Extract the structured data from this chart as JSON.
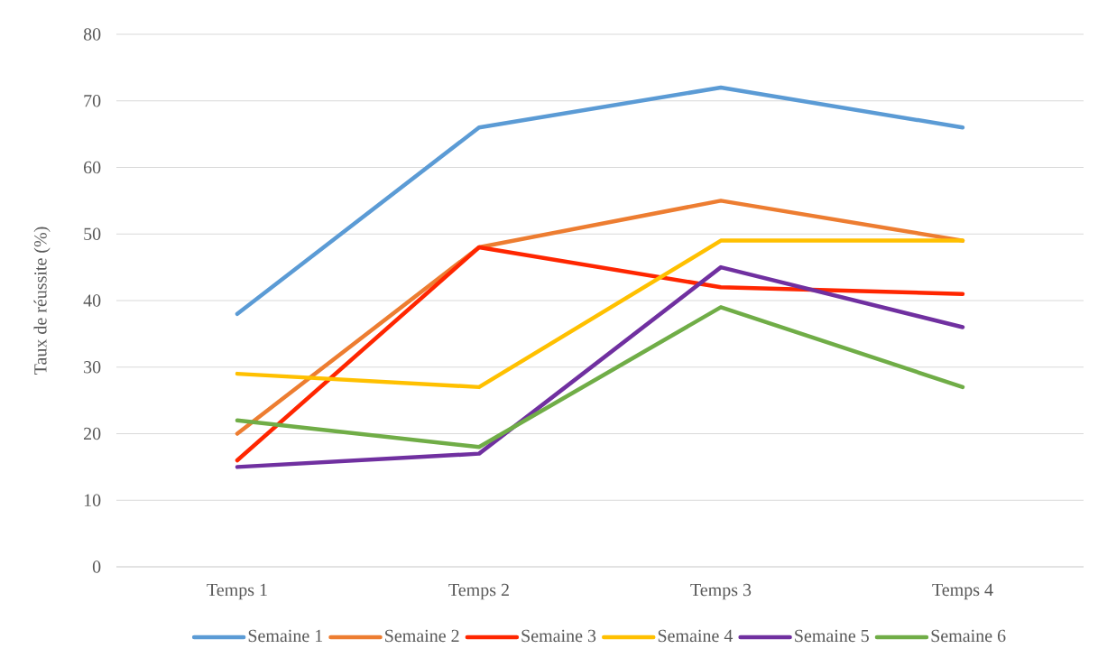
{
  "chart_data": {
    "type": "line",
    "ylabel": "Taux de réussite (%)",
    "categories": [
      "Temps 1",
      "Temps 2",
      "Temps 3",
      "Temps 4"
    ],
    "series": [
      {
        "name": "Semaine 1",
        "color": "#5b9bd5",
        "values": [
          38,
          66,
          72,
          66
        ]
      },
      {
        "name": "Semaine 2",
        "color": "#ed7d31",
        "values": [
          20,
          48,
          55,
          49
        ]
      },
      {
        "name": "Semaine 3",
        "color": "#ff2600",
        "values": [
          16,
          48,
          42,
          41
        ]
      },
      {
        "name": "Semaine 4",
        "color": "#ffc000",
        "values": [
          29,
          27,
          49,
          49
        ]
      },
      {
        "name": "Semaine 5",
        "color": "#7030a0",
        "values": [
          15,
          17,
          45,
          36
        ]
      },
      {
        "name": "Semaine 6",
        "color": "#70ad47",
        "values": [
          22,
          18,
          39,
          27
        ]
      }
    ],
    "ylim": [
      0,
      80
    ],
    "yticks": [
      0,
      10,
      20,
      30,
      40,
      50,
      60,
      70,
      80
    ],
    "grid": "y",
    "legend": "bottom"
  }
}
